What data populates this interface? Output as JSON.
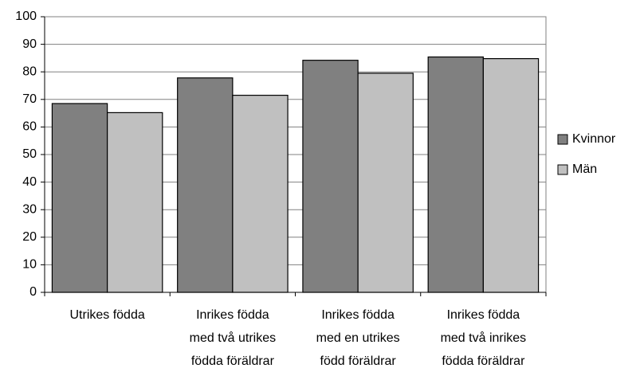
{
  "chart_data": {
    "type": "bar",
    "categories": [
      "Utrikes födda",
      "Inrikes födda\nmed två utrikes\nfödda föräldrar",
      "Inrikes födda\nmed en utrikes\nfödd föräldrar",
      "Inrikes födda\nmed två inrikes\nfödda föräldrar"
    ],
    "series": [
      {
        "name": "Kvinnor",
        "color": "#808080",
        "values": [
          68.5,
          77.8,
          84.2,
          85.4
        ]
      },
      {
        "name": "Män",
        "color": "#c0c0c0",
        "values": [
          65.2,
          71.5,
          79.5,
          84.8
        ]
      }
    ],
    "ylim": [
      0,
      100
    ],
    "yticks": [
      0,
      10,
      20,
      30,
      40,
      50,
      60,
      70,
      80,
      90,
      100
    ],
    "grid": true,
    "legend": "right"
  }
}
